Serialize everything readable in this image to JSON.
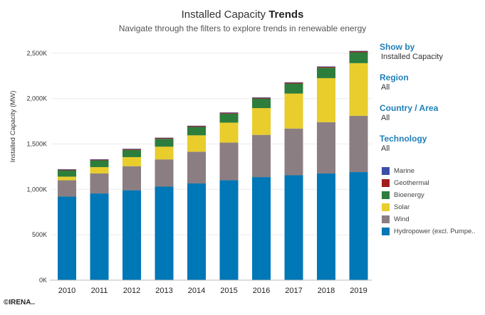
{
  "header": {
    "title_normal": "Installed Capacity ",
    "title_bold": "Trends",
    "subtitle": "Navigate through the filters to explore trends in renewable energy"
  },
  "filters": [
    {
      "label": "Show by",
      "value": "Installed Capacity"
    },
    {
      "label": "Region",
      "value": "All"
    },
    {
      "label": "Country / Area",
      "value": "All"
    },
    {
      "label": "Technology",
      "value": "All"
    }
  ],
  "copyright": "©IRENA..",
  "chart_data": {
    "type": "bar",
    "stacked": true,
    "ylabel": "Installed Capacity (MW)",
    "yticks": [
      "0K",
      "500K",
      "1,000K",
      "1,500K",
      "2,000K",
      "2,500K"
    ],
    "ylim": [
      0,
      2600000
    ],
    "categories": [
      "2010",
      "2011",
      "2012",
      "2013",
      "2014",
      "2015",
      "2016",
      "2017",
      "2018",
      "2019"
    ],
    "series": [
      {
        "name": "Hydropower (excl. Pumpe..",
        "color": "#0077b6",
        "values": [
          920000,
          955000,
          990000,
          1030000,
          1065000,
          1100000,
          1135000,
          1155000,
          1175000,
          1190000
        ]
      },
      {
        "name": "Wind",
        "color": "#8b7e82",
        "values": [
          180000,
          220000,
          265000,
          300000,
          350000,
          415000,
          465000,
          515000,
          565000,
          620000
        ]
      },
      {
        "name": "Solar",
        "color": "#e8cd2c",
        "values": [
          40000,
          70000,
          100000,
          140000,
          180000,
          220000,
          295000,
          385000,
          485000,
          580000
        ]
      },
      {
        "name": "Bioenergy",
        "color": "#2d7d3c",
        "values": [
          70000,
          75000,
          80000,
          87000,
          93000,
          99000,
          105000,
          110000,
          115000,
          120000
        ]
      },
      {
        "name": "Geothermal",
        "color": "#a11d1d",
        "values": [
          10000,
          10000,
          11000,
          11000,
          12000,
          12000,
          12000,
          13000,
          13000,
          14000
        ]
      },
      {
        "name": "Marine",
        "color": "#3b4fa8",
        "values": [
          500,
          500,
          500,
          500,
          500,
          500,
          500,
          500,
          500,
          500
        ]
      }
    ],
    "legend_order": [
      "Marine",
      "Geothermal",
      "Bioenergy",
      "Solar",
      "Wind",
      "Hydropower (excl. Pumpe.."
    ]
  }
}
